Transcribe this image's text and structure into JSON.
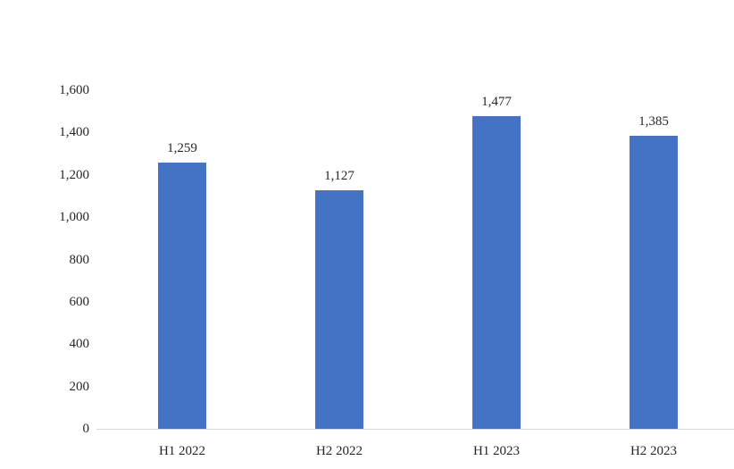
{
  "chart_data": {
    "type": "bar",
    "title": "",
    "xlabel": "",
    "ylabel": "",
    "categories": [
      "H1 2022",
      "H2 2022",
      "H1 2023",
      "H2 2023"
    ],
    "values": [
      1259,
      1127,
      1477,
      1385
    ],
    "value_labels": [
      "1,259",
      "1,127",
      "1,477",
      "1,385"
    ],
    "ylim": [
      0,
      1600
    ],
    "y_ticks": [
      0,
      200,
      400,
      600,
      800,
      1000,
      1200,
      1400,
      1600
    ],
    "y_tick_labels": [
      "0",
      "200",
      "400",
      "600",
      "800",
      "1,000",
      "1,200",
      "1,400",
      "1,600"
    ],
    "grid": false,
    "legend": "none",
    "bar_color": "#4472c4",
    "axis_line_color": "#d9d9d9",
    "text_color": "#262626",
    "background_color": "#ffffff"
  }
}
